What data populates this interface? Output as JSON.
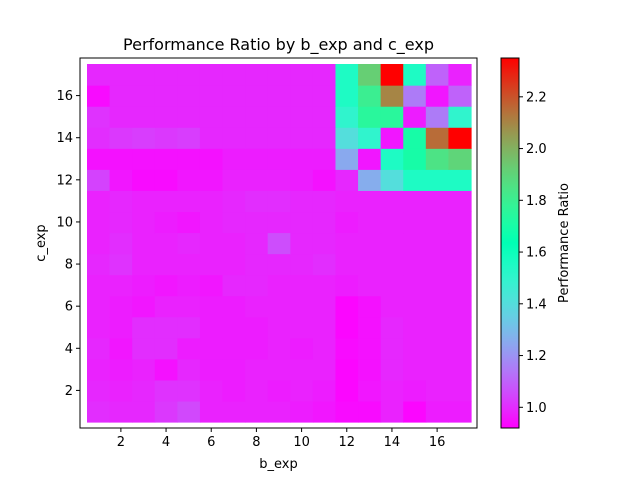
{
  "chart_data": {
    "type": "heatmap",
    "title": "Performance Ratio by b_exp and c_exp",
    "xlabel": "b_exp",
    "ylabel": "c_exp",
    "colorbar_label": "Performance Ratio",
    "colormap": "rainbow",
    "x": [
      1,
      2,
      3,
      4,
      5,
      6,
      7,
      8,
      9,
      10,
      11,
      12,
      13,
      14,
      15,
      16,
      17
    ],
    "y": [
      1,
      2,
      3,
      4,
      5,
      6,
      7,
      8,
      9,
      10,
      11,
      12,
      13,
      14,
      15,
      16,
      17
    ],
    "xlim": [
      0.5,
      17.5
    ],
    "ylim": [
      0.5,
      17.5
    ],
    "xticks": [
      2,
      4,
      6,
      8,
      10,
      12,
      14,
      16
    ],
    "yticks": [
      2,
      4,
      6,
      8,
      10,
      12,
      14,
      16
    ],
    "vmin": 0.92,
    "vmax": 2.35,
    "colorbar_ticks": [
      1.0,
      1.2,
      1.4,
      1.6,
      1.8,
      2.0,
      2.2
    ],
    "values": [
      [
        1.0,
        0.99,
        0.99,
        1.02,
        1.05,
        0.98,
        0.98,
        0.98,
        0.98,
        0.97,
        0.96,
        0.94,
        0.94,
        0.98,
        0.93,
        0.97,
        0.97
      ],
      [
        0.99,
        0.98,
        0.99,
        1.01,
        1.01,
        0.98,
        0.97,
        0.98,
        0.97,
        0.98,
        0.97,
        0.93,
        0.96,
        0.98,
        0.97,
        0.98,
        0.98
      ],
      [
        0.98,
        0.97,
        0.98,
        0.95,
        0.99,
        0.97,
        0.97,
        0.98,
        0.98,
        0.98,
        0.98,
        0.93,
        0.95,
        0.99,
        0.98,
        0.98,
        0.98
      ],
      [
        0.99,
        0.96,
        1.0,
        1.0,
        0.97,
        0.97,
        0.97,
        0.97,
        0.98,
        0.97,
        0.98,
        0.94,
        0.95,
        0.99,
        0.98,
        0.98,
        0.98
      ],
      [
        0.98,
        0.97,
        1.0,
        1.0,
        1.0,
        0.97,
        0.97,
        0.97,
        0.98,
        0.98,
        0.98,
        0.93,
        0.95,
        0.99,
        0.98,
        0.98,
        0.98
      ],
      [
        0.98,
        0.97,
        0.96,
        0.98,
        0.98,
        0.97,
        0.97,
        0.98,
        0.98,
        0.98,
        0.98,
        0.93,
        0.95,
        0.98,
        0.98,
        0.98,
        0.98
      ],
      [
        0.98,
        0.98,
        0.97,
        0.96,
        0.97,
        0.96,
        0.99,
        0.99,
        0.98,
        0.98,
        0.98,
        0.97,
        0.98,
        0.98,
        0.98,
        0.98,
        0.98
      ],
      [
        0.99,
        1.01,
        0.98,
        0.98,
        0.98,
        0.98,
        0.98,
        0.99,
        0.99,
        0.99,
        1.0,
        0.98,
        0.98,
        0.98,
        0.98,
        0.98,
        0.98
      ],
      [
        0.98,
        1.0,
        0.98,
        0.98,
        0.99,
        0.98,
        0.98,
        0.99,
        1.06,
        0.99,
        0.99,
        0.98,
        0.98,
        0.98,
        0.98,
        0.98,
        0.98
      ],
      [
        0.98,
        0.99,
        0.98,
        0.97,
        0.96,
        0.98,
        0.99,
        0.99,
        0.99,
        0.99,
        0.99,
        0.97,
        0.98,
        0.98,
        0.98,
        0.98,
        0.98
      ],
      [
        0.98,
        0.99,
        0.98,
        0.98,
        0.98,
        0.98,
        0.99,
        1.0,
        1.0,
        0.99,
        0.99,
        0.98,
        0.98,
        0.98,
        0.98,
        0.98,
        0.98
      ],
      [
        1.04,
        0.96,
        0.94,
        0.94,
        0.96,
        0.96,
        0.98,
        0.98,
        0.98,
        0.97,
        0.95,
        0.99,
        1.26,
        1.4,
        1.55,
        1.55,
        1.55
      ],
      [
        0.95,
        0.95,
        0.95,
        0.95,
        0.95,
        0.95,
        0.97,
        0.97,
        0.97,
        0.97,
        0.97,
        1.25,
        0.96,
        1.55,
        1.7,
        1.85,
        1.9
      ],
      [
        1.0,
        1.02,
        1.03,
        1.02,
        1.03,
        0.99,
        0.99,
        0.99,
        0.99,
        0.99,
        0.99,
        1.4,
        1.5,
        0.96,
        1.7,
        2.15,
        2.35
      ],
      [
        1.01,
        0.99,
        0.99,
        0.99,
        0.99,
        0.99,
        0.99,
        0.99,
        0.99,
        0.99,
        0.99,
        1.5,
        1.75,
        1.75,
        0.97,
        1.15,
        1.5
      ],
      [
        0.94,
        0.99,
        0.99,
        0.99,
        0.99,
        0.99,
        0.99,
        0.99,
        0.99,
        0.99,
        0.99,
        1.55,
        1.8,
        2.1,
        1.15,
        0.96,
        1.1
      ],
      [
        0.99,
        0.99,
        0.99,
        0.99,
        0.99,
        0.99,
        0.99,
        0.99,
        0.99,
        0.99,
        0.99,
        1.55,
        1.92,
        2.35,
        1.55,
        1.1,
        0.98
      ]
    ]
  }
}
